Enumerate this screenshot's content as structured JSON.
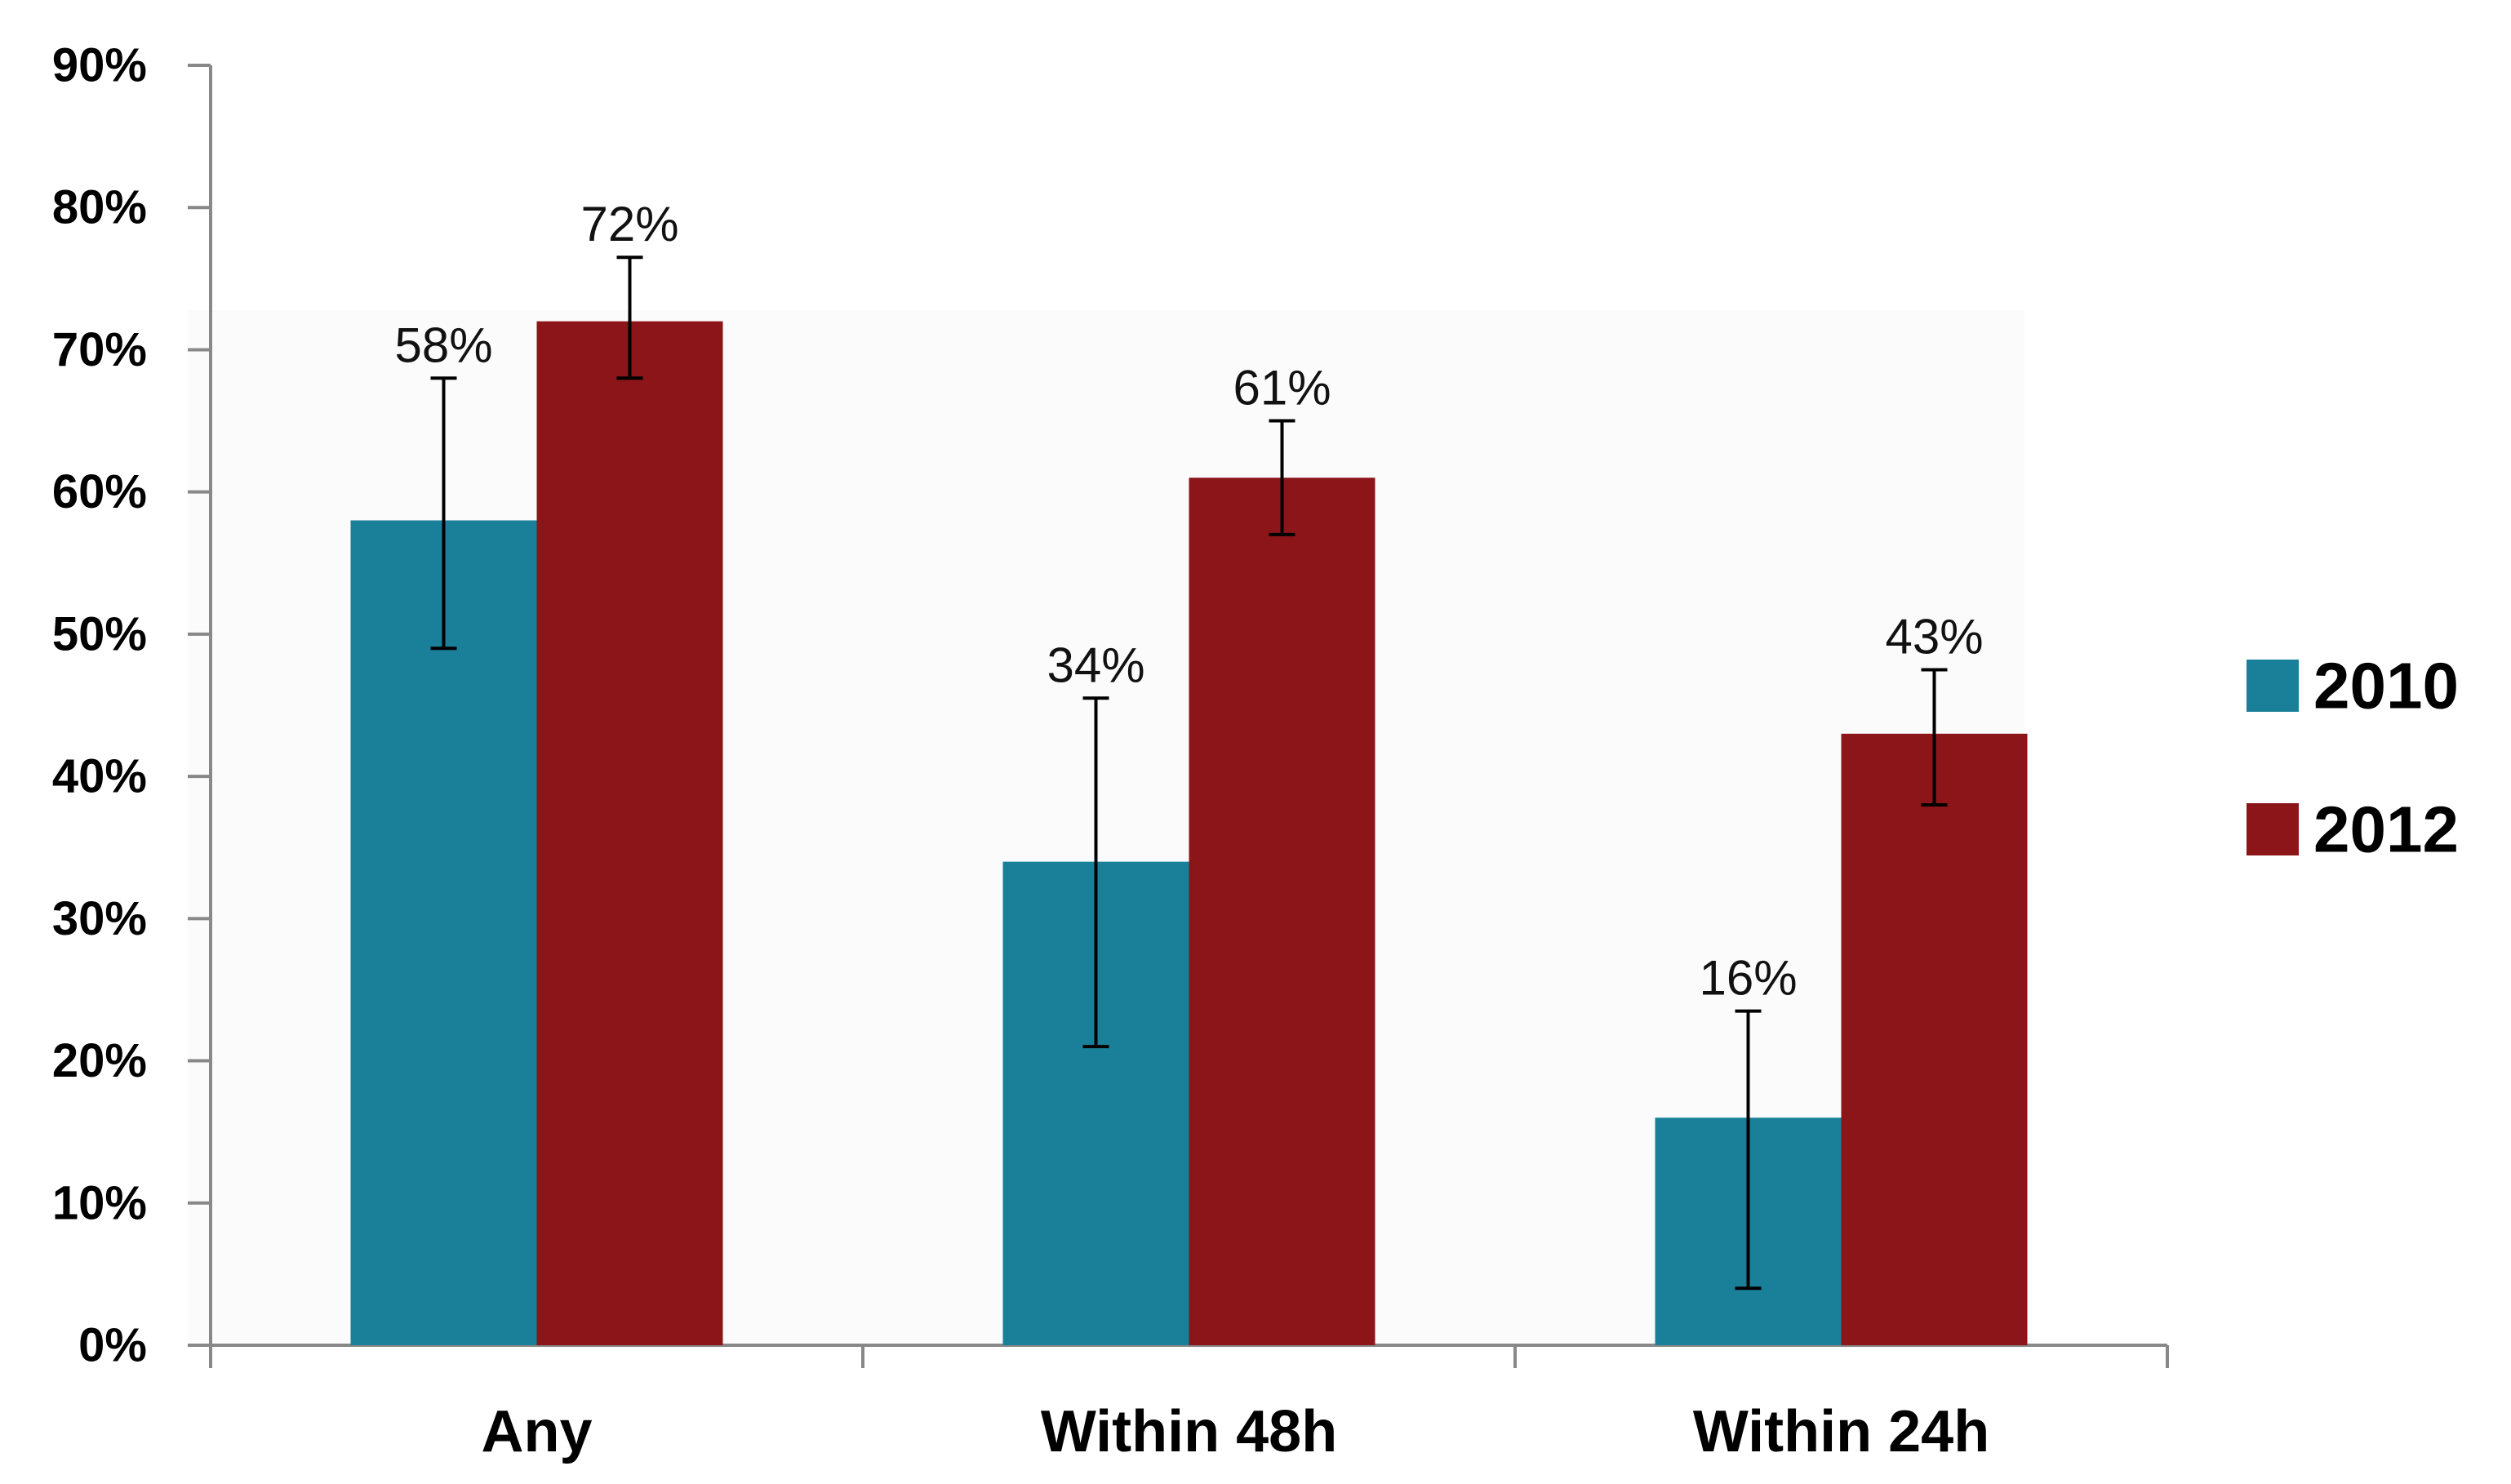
{
  "chart_data": {
    "type": "bar",
    "categories": [
      "Any",
      "Within 48h",
      "Within 24h"
    ],
    "series": [
      {
        "name": "2010",
        "values": [
          58,
          34,
          16
        ],
        "labels": [
          "58%",
          "34%",
          "16%"
        ],
        "error_low": [
          49,
          21,
          4
        ],
        "error_high": [
          68,
          45.5,
          23.5
        ],
        "color": "#1a8099"
      },
      {
        "name": "2012",
        "values": [
          72,
          61,
          43
        ],
        "labels": [
          "72%",
          "61%",
          "43%"
        ],
        "error_low": [
          68,
          57,
          38
        ],
        "error_high": [
          76.5,
          65,
          47.5
        ],
        "color": "#8b1519"
      }
    ],
    "y_ticks": [
      "0%",
      "10%",
      "20%",
      "30%",
      "40%",
      "50%",
      "60%",
      "70%",
      "80%",
      "90%"
    ],
    "ylim": [
      0,
      90
    ],
    "legend_position": "right",
    "grid": false,
    "title": "",
    "xlabel": "",
    "ylabel": ""
  }
}
